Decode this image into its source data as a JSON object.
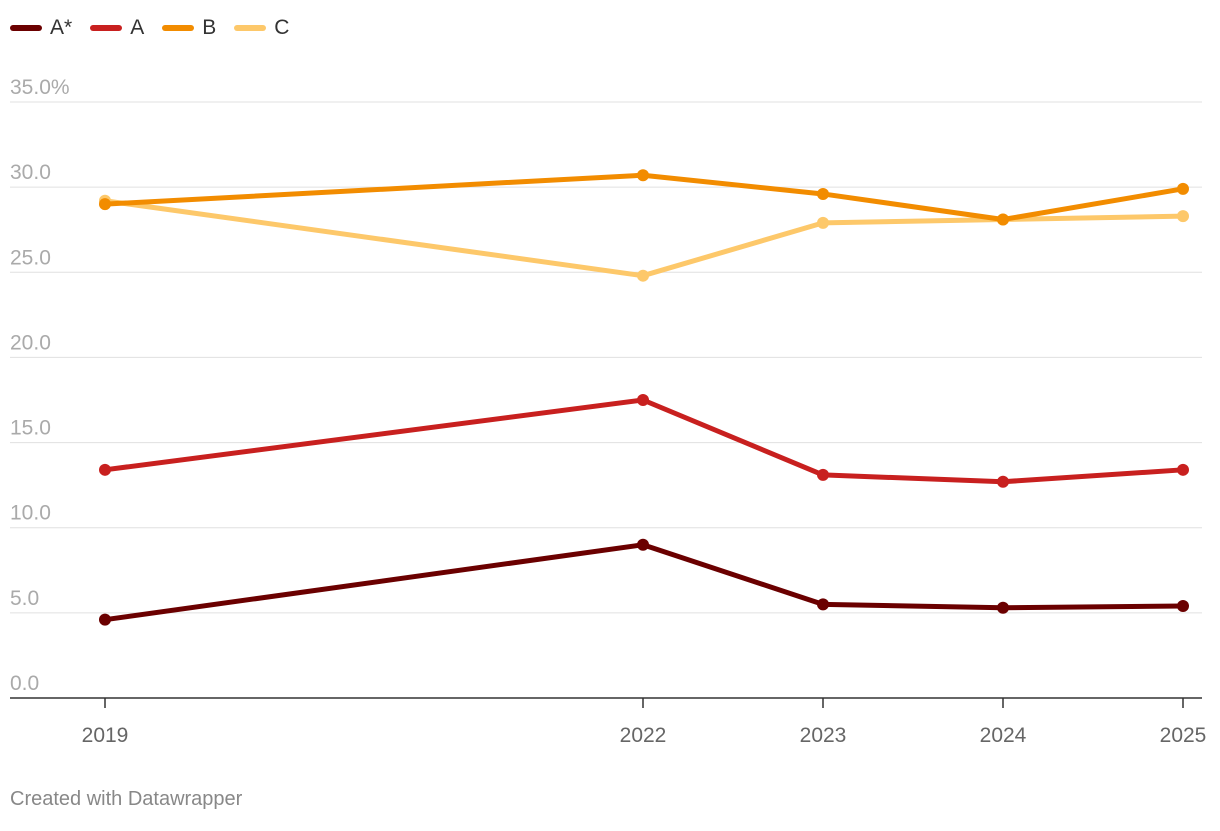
{
  "chart_data": {
    "type": "line",
    "title": "",
    "xlabel": "",
    "ylabel": "",
    "x": [
      2019,
      2022,
      2023,
      2024,
      2025
    ],
    "x_tick_labels": [
      "2019",
      "2022",
      "2023",
      "2024",
      "2025"
    ],
    "ylim": [
      0,
      35
    ],
    "y_ticks": [
      0,
      5,
      10,
      15,
      20,
      25,
      30,
      35
    ],
    "y_tick_labels": [
      "0.0",
      "5.0",
      "10.0",
      "15.0",
      "20.0",
      "25.0",
      "30.0",
      "35.0%"
    ],
    "grid": true,
    "legend_position": "top-left",
    "series": [
      {
        "name": "A*",
        "color": "#6b0000",
        "values": [
          4.6,
          9.0,
          5.5,
          5.3,
          5.4
        ]
      },
      {
        "name": "A",
        "color": "#c8201f",
        "values": [
          13.4,
          17.5,
          13.1,
          12.7,
          13.4
        ]
      },
      {
        "name": "B",
        "color": "#f28c00",
        "values": [
          29.0,
          30.7,
          29.6,
          28.1,
          29.9
        ]
      },
      {
        "name": "C",
        "color": "#fdc86a",
        "values": [
          29.2,
          24.8,
          27.9,
          28.1,
          28.3
        ]
      }
    ]
  },
  "footer": {
    "credit": "Created with Datawrapper"
  }
}
